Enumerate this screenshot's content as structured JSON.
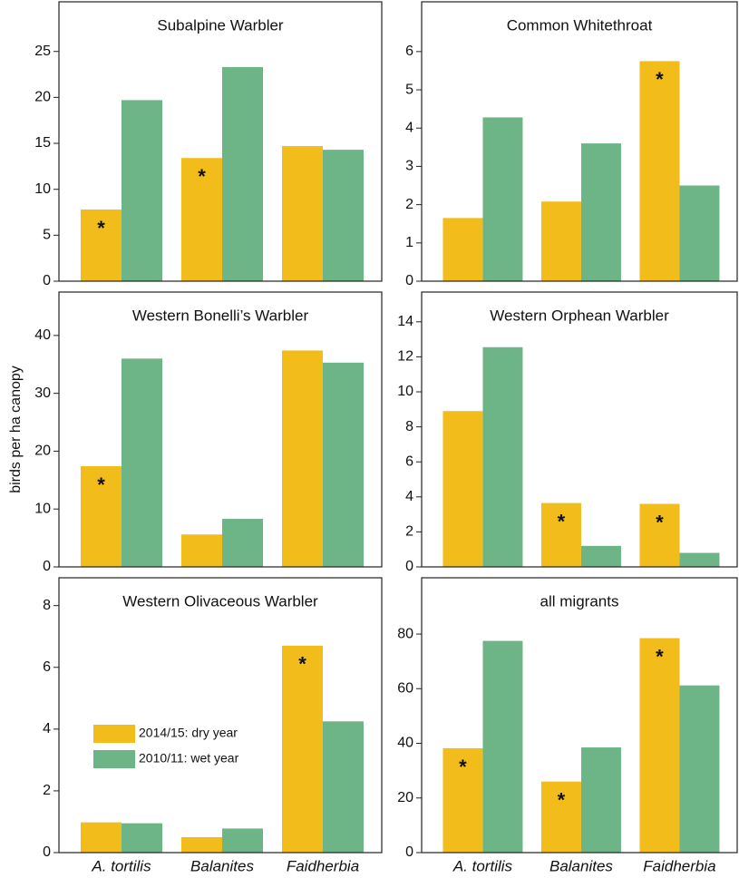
{
  "chart_data": [
    {
      "type": "bar",
      "title": "Subalpine Warbler",
      "categories": [
        null,
        null,
        null
      ],
      "series": [
        {
          "color": "#f2bd1a",
          "values": [
            7.8,
            13.4,
            14.7
          ],
          "marks": [
            "*",
            "*",
            null
          ]
        },
        {
          "color": "#6db487",
          "values": [
            19.7,
            23.3,
            14.3
          ],
          "marks": [
            null,
            null,
            null
          ]
        }
      ],
      "ylim": [
        0,
        30.4
      ],
      "yticks": [
        0,
        5,
        10,
        15,
        20,
        25
      ]
    },
    {
      "type": "bar",
      "title": "Common Whitethroat",
      "categories": [
        null,
        null,
        null
      ],
      "series": [
        {
          "color": "#f2bd1a",
          "values": [
            1.65,
            2.08,
            5.75
          ],
          "marks": [
            null,
            null,
            "*"
          ]
        },
        {
          "color": "#6db487",
          "values": [
            4.28,
            3.6,
            2.5
          ],
          "marks": [
            null,
            null,
            null
          ]
        }
      ],
      "ylim": [
        0,
        7.3
      ],
      "yticks": [
        0,
        1,
        2,
        3,
        4,
        5,
        6
      ]
    },
    {
      "type": "bar",
      "title": "Western Bonelli’s Warbler",
      "ylabel": "birds per ha canopy",
      "categories": [
        null,
        null,
        null
      ],
      "series": [
        {
          "color": "#f2bd1a",
          "values": [
            17.4,
            5.6,
            37.4
          ],
          "marks": [
            "*",
            null,
            null
          ]
        },
        {
          "color": "#6db487",
          "values": [
            36,
            8.3,
            35.3
          ],
          "marks": [
            null,
            null,
            null
          ]
        }
      ],
      "ylim": [
        0,
        47.5
      ],
      "yticks": [
        0,
        10,
        20,
        30,
        40
      ]
    },
    {
      "type": "bar",
      "title": "Western Orphean Warbler",
      "categories": [
        null,
        null,
        null
      ],
      "series": [
        {
          "color": "#f2bd1a",
          "values": [
            8.9,
            3.65,
            3.6
          ],
          "marks": [
            null,
            "*",
            "*"
          ]
        },
        {
          "color": "#6db487",
          "values": [
            12.55,
            1.2,
            0.8
          ],
          "marks": [
            null,
            null,
            null
          ]
        }
      ],
      "ylim": [
        0,
        15.7
      ],
      "yticks": [
        0,
        2,
        4,
        6,
        8,
        10,
        12,
        14
      ]
    },
    {
      "type": "bar",
      "title": "Western Olivaceous Warbler",
      "categories": [
        "A. tortilis",
        "Balanites",
        "Faidherbia"
      ],
      "series": [
        {
          "name": "2014/15: dry year",
          "color": "#f2bd1a",
          "values": [
            0.98,
            0.5,
            6.7
          ],
          "marks": [
            null,
            null,
            "*"
          ]
        },
        {
          "name": "2010/11: wet year",
          "color": "#6db487",
          "values": [
            0.95,
            0.78,
            4.25
          ],
          "marks": [
            null,
            null,
            null
          ]
        }
      ],
      "ylim": [
        0,
        8.9
      ],
      "yticks": [
        0,
        2,
        4,
        6,
        8
      ]
    },
    {
      "type": "bar",
      "title": "all migrants",
      "categories": [
        "A. tortilis",
        "Balanites",
        "Faidherbia"
      ],
      "series": [
        {
          "color": "#f2bd1a",
          "values": [
            38.2,
            26,
            78.5
          ],
          "marks": [
            "*",
            "*",
            "*"
          ]
        },
        {
          "color": "#6db487",
          "values": [
            77.5,
            38.5,
            61.2
          ],
          "marks": [
            null,
            null,
            null
          ]
        }
      ],
      "ylim": [
        0,
        100.6
      ],
      "yticks": [
        0,
        20,
        40,
        60,
        80
      ]
    }
  ]
}
